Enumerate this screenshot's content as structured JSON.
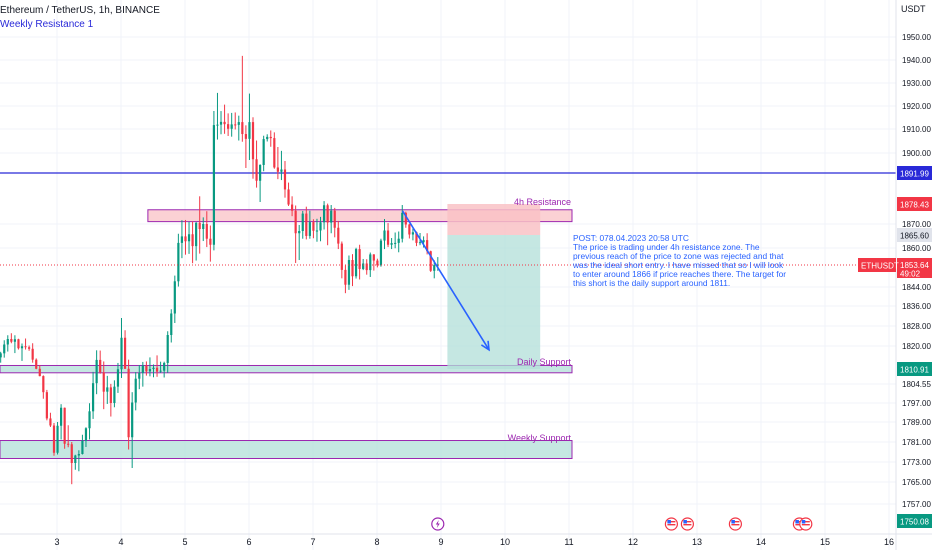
{
  "header": {
    "title": "Ethereum / TetherUS, 1h, BINANCE",
    "currency": "USDT"
  },
  "chart_data": {
    "type": "candlestick",
    "title": "Ethereum / TetherUS, 1h, BINANCE",
    "ylabel": "USDT",
    "ylim": [
      1749,
      1957
    ],
    "xlim": [
      2.1,
      16.0
    ],
    "grid": true,
    "price_ticks": [
      "1950.00",
      "1940.00",
      "1930.00",
      "1920.00",
      "1910.00",
      "1900.00",
      "1870.00",
      "1860.00",
      "1844.00",
      "1836.00",
      "1828.00",
      "1820.00",
      "1804.55",
      "1797.00",
      "1789.00",
      "1781.00",
      "1773.00",
      "1765.00",
      "1757.00"
    ],
    "date_ticks": [
      "3",
      "4",
      "5",
      "6",
      "7",
      "8",
      "9",
      "10",
      "11",
      "12",
      "13",
      "14",
      "15",
      "16"
    ],
    "candles_ohlc": [
      [
        1815.5,
        1817.7,
        1813.4,
        1817.1
      ],
      [
        1817.1,
        1822.3,
        1815.4,
        1820.6
      ],
      [
        1820.6,
        1824.3,
        1817.8,
        1822.8
      ],
      [
        1822.8,
        1825.1,
        1821.1,
        1821.7
      ],
      [
        1821.7,
        1824.3,
        1817.2,
        1822.7
      ],
      [
        1822.7,
        1822.9,
        1818.6,
        1819.1
      ],
      [
        1819.1,
        1821.0,
        1814.1,
        1819.9
      ],
      [
        1819.9,
        1823.0,
        1818.6,
        1819.5
      ],
      [
        1819.5,
        1820.2,
        1818.1,
        1818.9
      ],
      [
        1818.9,
        1821.1,
        1813.4,
        1814.6
      ],
      [
        1814.6,
        1815.1,
        1810.8,
        1811.0
      ],
      [
        1811.0,
        1812.5,
        1807.8,
        1807.9
      ],
      [
        1807.9,
        1808.2,
        1798.7,
        1801.3
      ],
      [
        1801.3,
        1802.2,
        1789.7,
        1790.5
      ],
      [
        1790.5,
        1792.9,
        1787.0,
        1787.6
      ],
      [
        1787.6,
        1788.6,
        1775.5,
        1776.7
      ],
      [
        1776.7,
        1789.0,
        1776.0,
        1787.5
      ],
      [
        1787.5,
        1796.5,
        1782.0,
        1795.0
      ],
      [
        1795.0,
        1795.1,
        1778.3,
        1780.3
      ],
      [
        1780.3,
        1787.7,
        1778.9,
        1780.1
      ],
      [
        1780.1,
        1781.0,
        1764.2,
        1772.6
      ],
      [
        1772.6,
        1775.9,
        1769.9,
        1775.6
      ],
      [
        1775.6,
        1777.7,
        1769.3,
        1776.2
      ],
      [
        1776.2,
        1783.9,
        1776.0,
        1781.5
      ],
      [
        1781.5,
        1786.9,
        1779.0,
        1786.5
      ],
      [
        1786.5,
        1796.9,
        1782.0,
        1793.5
      ],
      [
        1793.5,
        1809.7,
        1790.3,
        1804.9
      ],
      [
        1804.9,
        1818.3,
        1800.5,
        1814.5
      ],
      [
        1814.5,
        1818.2,
        1808.9,
        1809.5
      ],
      [
        1809.5,
        1813.9,
        1794.4,
        1801.5
      ],
      [
        1801.5,
        1808.0,
        1796.6,
        1803.2
      ],
      [
        1803.2,
        1804.6,
        1791.3,
        1797.0
      ],
      [
        1797.0,
        1806.1,
        1795.2,
        1803.5
      ],
      [
        1803.5,
        1813.3,
        1801.0,
        1810.8
      ],
      [
        1810.8,
        1831.2,
        1807.1,
        1823.3
      ],
      [
        1823.3,
        1826.3,
        1810.9,
        1811.0
      ],
      [
        1811.0,
        1814.6,
        1778.0,
        1782.9
      ],
      [
        1782.9,
        1801.3,
        1770.6,
        1797.2
      ],
      [
        1797.2,
        1809.6,
        1793.9,
        1806.8
      ],
      [
        1806.8,
        1812.5,
        1802.5,
        1809.2
      ],
      [
        1809.2,
        1813.7,
        1803.5,
        1812.3
      ],
      [
        1812.3,
        1813.9,
        1808.1,
        1809.9
      ],
      [
        1809.9,
        1815.5,
        1807.8,
        1810.9
      ],
      [
        1810.9,
        1812.7,
        1807.4,
        1811.4
      ],
      [
        1811.4,
        1816.3,
        1807.6,
        1809.8
      ],
      [
        1809.8,
        1813.8,
        1809.3,
        1810.2
      ],
      [
        1810.2,
        1813.8,
        1807.3,
        1813.3
      ],
      [
        1813.3,
        1825.9,
        1809.3,
        1824.4
      ],
      [
        1824.4,
        1834.7,
        1821.4,
        1833.0
      ],
      [
        1833.0,
        1849.0,
        1829.2,
        1846.5
      ],
      [
        1846.5,
        1866.1,
        1844.2,
        1862.2
      ],
      [
        1862.2,
        1871.6,
        1856.2,
        1865.0
      ],
      [
        1865.0,
        1871.7,
        1857.5,
        1862.9
      ],
      [
        1862.9,
        1870.9,
        1857.8,
        1865.9
      ],
      [
        1865.9,
        1871.1,
        1854.3,
        1860.8
      ],
      [
        1860.8,
        1870.8,
        1855.3,
        1870.5
      ],
      [
        1870.5,
        1881.8,
        1857.9,
        1868.0
      ],
      [
        1868.0,
        1872.8,
        1863.0,
        1870.0
      ],
      [
        1870.0,
        1875.4,
        1860.4,
        1864.0
      ],
      [
        1864.0,
        1869.4,
        1854.9,
        1861.4
      ],
      [
        1861.4,
        1917.8,
        1859.1,
        1911.7
      ],
      [
        1911.7,
        1925.7,
        1905.6,
        1911.9
      ],
      [
        1911.9,
        1917.8,
        1907.8,
        1913.1
      ],
      [
        1913.1,
        1920.6,
        1908.0,
        1912.1
      ],
      [
        1912.1,
        1916.8,
        1907.1,
        1910.1
      ],
      [
        1910.1,
        1917.0,
        1906.8,
        1912.0
      ],
      [
        1912.0,
        1917.2,
        1909.8,
        1911.8
      ],
      [
        1911.8,
        1915.8,
        1905.2,
        1913.0
      ],
      [
        1913.0,
        1941.8,
        1904.7,
        1907.9
      ],
      [
        1907.9,
        1911.6,
        1894.0,
        1905.9
      ],
      [
        1905.9,
        1925.4,
        1897.2,
        1913.0
      ],
      [
        1913.0,
        1915.1,
        1889.5,
        1897.5
      ],
      [
        1897.5,
        1905.2,
        1885.6,
        1888.6
      ],
      [
        1888.6,
        1895.5,
        1879.3,
        1895.2
      ],
      [
        1895.2,
        1907.2,
        1892.7,
        1905.8
      ],
      [
        1905.8,
        1907.8,
        1904.8,
        1906.7
      ],
      [
        1906.7,
        1909.4,
        1902.6,
        1906.2
      ],
      [
        1906.2,
        1908.6,
        1893.7,
        1894.2
      ],
      [
        1894.2,
        1902.5,
        1889.3,
        1892.5
      ],
      [
        1892.5,
        1900.9,
        1888.9,
        1893.4
      ],
      [
        1893.4,
        1896.8,
        1881.2,
        1884.8
      ],
      [
        1884.8,
        1887.8,
        1877.6,
        1878.2
      ],
      [
        1878.2,
        1881.8,
        1873.3,
        1875.6
      ],
      [
        1875.6,
        1877.8,
        1854.4,
        1866.3
      ],
      [
        1866.3,
        1869.6,
        1855.5,
        1867.2
      ],
      [
        1867.2,
        1875.5,
        1864.0,
        1874.4
      ],
      [
        1874.4,
        1877.3,
        1863.7,
        1865.2
      ],
      [
        1865.2,
        1875.6,
        1864.0,
        1870.8
      ],
      [
        1870.8,
        1872.0,
        1864.2,
        1867.3
      ],
      [
        1867.3,
        1872.2,
        1862.7,
        1867.4
      ],
      [
        1867.4,
        1873.0,
        1862.9,
        1870.7
      ],
      [
        1870.7,
        1879.7,
        1867.8,
        1877.9
      ],
      [
        1877.9,
        1878.6,
        1861.2,
        1870.6
      ],
      [
        1870.6,
        1878.0,
        1866.3,
        1875.6
      ],
      [
        1875.6,
        1876.8,
        1864.6,
        1868.5
      ],
      [
        1868.5,
        1871.3,
        1859.6,
        1861.9
      ],
      [
        1861.9,
        1862.8,
        1847.8,
        1851.5
      ],
      [
        1851.5,
        1853.4,
        1841.4,
        1845.0
      ],
      [
        1845.0,
        1857.2,
        1842.8,
        1855.5
      ],
      [
        1855.5,
        1857.7,
        1844.4,
        1848.7
      ],
      [
        1848.7,
        1860.1,
        1847.7,
        1859.6
      ],
      [
        1859.6,
        1861.4,
        1847.3,
        1851.9
      ],
      [
        1851.9,
        1855.9,
        1851.4,
        1854.2
      ],
      [
        1854.2,
        1855.8,
        1849.4,
        1851.4
      ],
      [
        1851.4,
        1858.3,
        1848.4,
        1857.6
      ],
      [
        1857.6,
        1857.7,
        1851.2,
        1855.3
      ],
      [
        1855.3,
        1856.0,
        1852.6,
        1853.5
      ],
      [
        1853.5,
        1864.0,
        1852.9,
        1863.2
      ],
      [
        1863.2,
        1872.1,
        1859.6,
        1867.4
      ],
      [
        1867.4,
        1870.4,
        1860.4,
        1861.4
      ],
      [
        1861.4,
        1864.3,
        1859.6,
        1862.1
      ],
      [
        1862.1,
        1866.6,
        1859.9,
        1862.2
      ],
      [
        1862.2,
        1867.0,
        1858.4,
        1864.0
      ],
      [
        1864.0,
        1878.0,
        1862.4,
        1874.7
      ],
      [
        1874.7,
        1875.2,
        1868.5,
        1869.8
      ],
      [
        1869.8,
        1870.1,
        1864.1,
        1865.8
      ],
      [
        1865.8,
        1868.2,
        1863.3,
        1866.7
      ],
      [
        1866.7,
        1867.0,
        1860.8,
        1862.2
      ],
      [
        1862.2,
        1866.4,
        1861.2,
        1862.5
      ],
      [
        1862.5,
        1865.0,
        1860.2,
        1863.4
      ],
      [
        1863.4,
        1866.3,
        1857.6,
        1858.8
      ],
      [
        1858.8,
        1859.0,
        1850.6,
        1851.1
      ],
      [
        1851.1,
        1855.4,
        1847.8,
        1853.6
      ],
      [
        1853.6,
        1856.6,
        1851.1,
        1853.8
      ]
    ],
    "current_price": "1853.64",
    "symbol_label": "ETHUSDT",
    "countdown": "49:02",
    "horizontal_lines": [
      {
        "name": "Weekly Resistance 1",
        "price": 1891.99,
        "label": "1891.99",
        "color": "#2929d8"
      }
    ],
    "zones": [
      {
        "name": "4h Resistance",
        "top": 1876.0,
        "bottom": 1871.0,
        "color": "#9c27b0"
      },
      {
        "name": "Daily Support",
        "top": 1812.3,
        "bottom": 1809.3,
        "color": "#9c27b0"
      },
      {
        "name": "Weekly Support",
        "top": 1781.6,
        "bottom": 1774.4,
        "color": "#9c27b0"
      }
    ],
    "short_position": {
      "entry": 1865.6,
      "stop": 1878.43,
      "target": 1810.91,
      "entry_label": "1865.60",
      "stop_label": "1878.43",
      "target_label": "1810.91",
      "start_x": 9.1,
      "end_x": 10.55
    },
    "projection_arrow": {
      "from": [
        8.4,
        1875.5
      ],
      "to": [
        9.75,
        1818.5
      ]
    },
    "extra_axis_label": "1750.08",
    "annotation": [
      "POST: 078.04.2023 20:58 UTC",
      "The price is trading under 4h resistance zone. The",
      "previous reach of the price to zone was rejected and that",
      "was the ideal short entry. I have missed that so I will look",
      "to enter around 1866 if price reaches there. The target for",
      "this short is the daily support around 1811."
    ],
    "event_markers": [
      {
        "icon": "lightning-icon",
        "x": 8.95
      },
      {
        "icon": "us-flag-icon",
        "x": 12.6
      },
      {
        "icon": "us-flag-icon",
        "x": 12.85
      },
      {
        "icon": "us-flag-icon",
        "x": 13.6
      },
      {
        "icon": "us-flag-icon",
        "x": 14.6
      },
      {
        "icon": "us-flag-icon",
        "x": 14.7
      }
    ],
    "colors": {
      "up": "#089981",
      "down": "#f23645",
      "weekly_resistance": "#2929d8",
      "zone_border": "#9c27b0",
      "label_purple": "#9c27b0",
      "profit": "#b2dfd8",
      "loss": "#f9c2c6",
      "arrow": "#2962ff",
      "annotation": "#2962ff"
    }
  }
}
